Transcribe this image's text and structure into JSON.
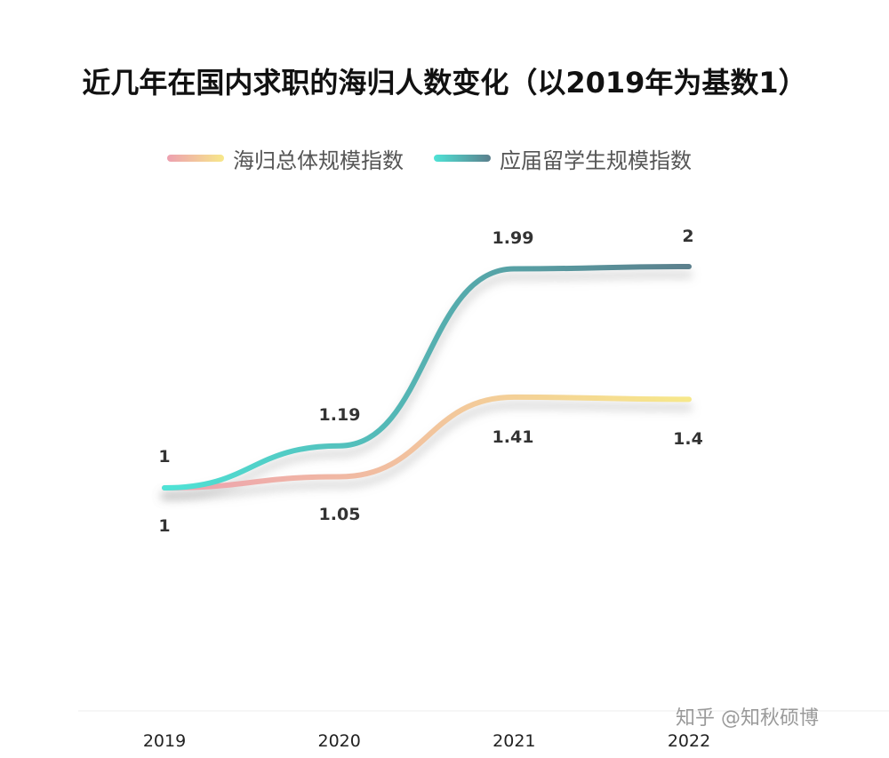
{
  "chart_data": {
    "type": "line",
    "title": "近几年在国内求职的海归人数变化（以2019年为基数1）",
    "categories": [
      "2019",
      "2020",
      "2021",
      "2022"
    ],
    "series": [
      {
        "name": "海归总体规模指数",
        "values": [
          1,
          1.05,
          1.41,
          1.4
        ],
        "value_labels": [
          "1",
          "1.05",
          "1.41",
          "1.4"
        ],
        "colors": [
          "#eda0b0",
          "#f7e88a"
        ]
      },
      {
        "name": "应届留学生规模指数",
        "values": [
          1,
          1.19,
          1.99,
          2
        ],
        "value_labels": [
          "1",
          "1.19",
          "1.99",
          "2"
        ],
        "colors": [
          "#4fe3d6",
          "#5b7f8c"
        ]
      }
    ],
    "xlabel": "",
    "ylabel": "",
    "ylim": [
      0.5,
      2.3
    ],
    "grid": false,
    "legend": "top"
  },
  "watermark": "知乎 @知秋硕博"
}
